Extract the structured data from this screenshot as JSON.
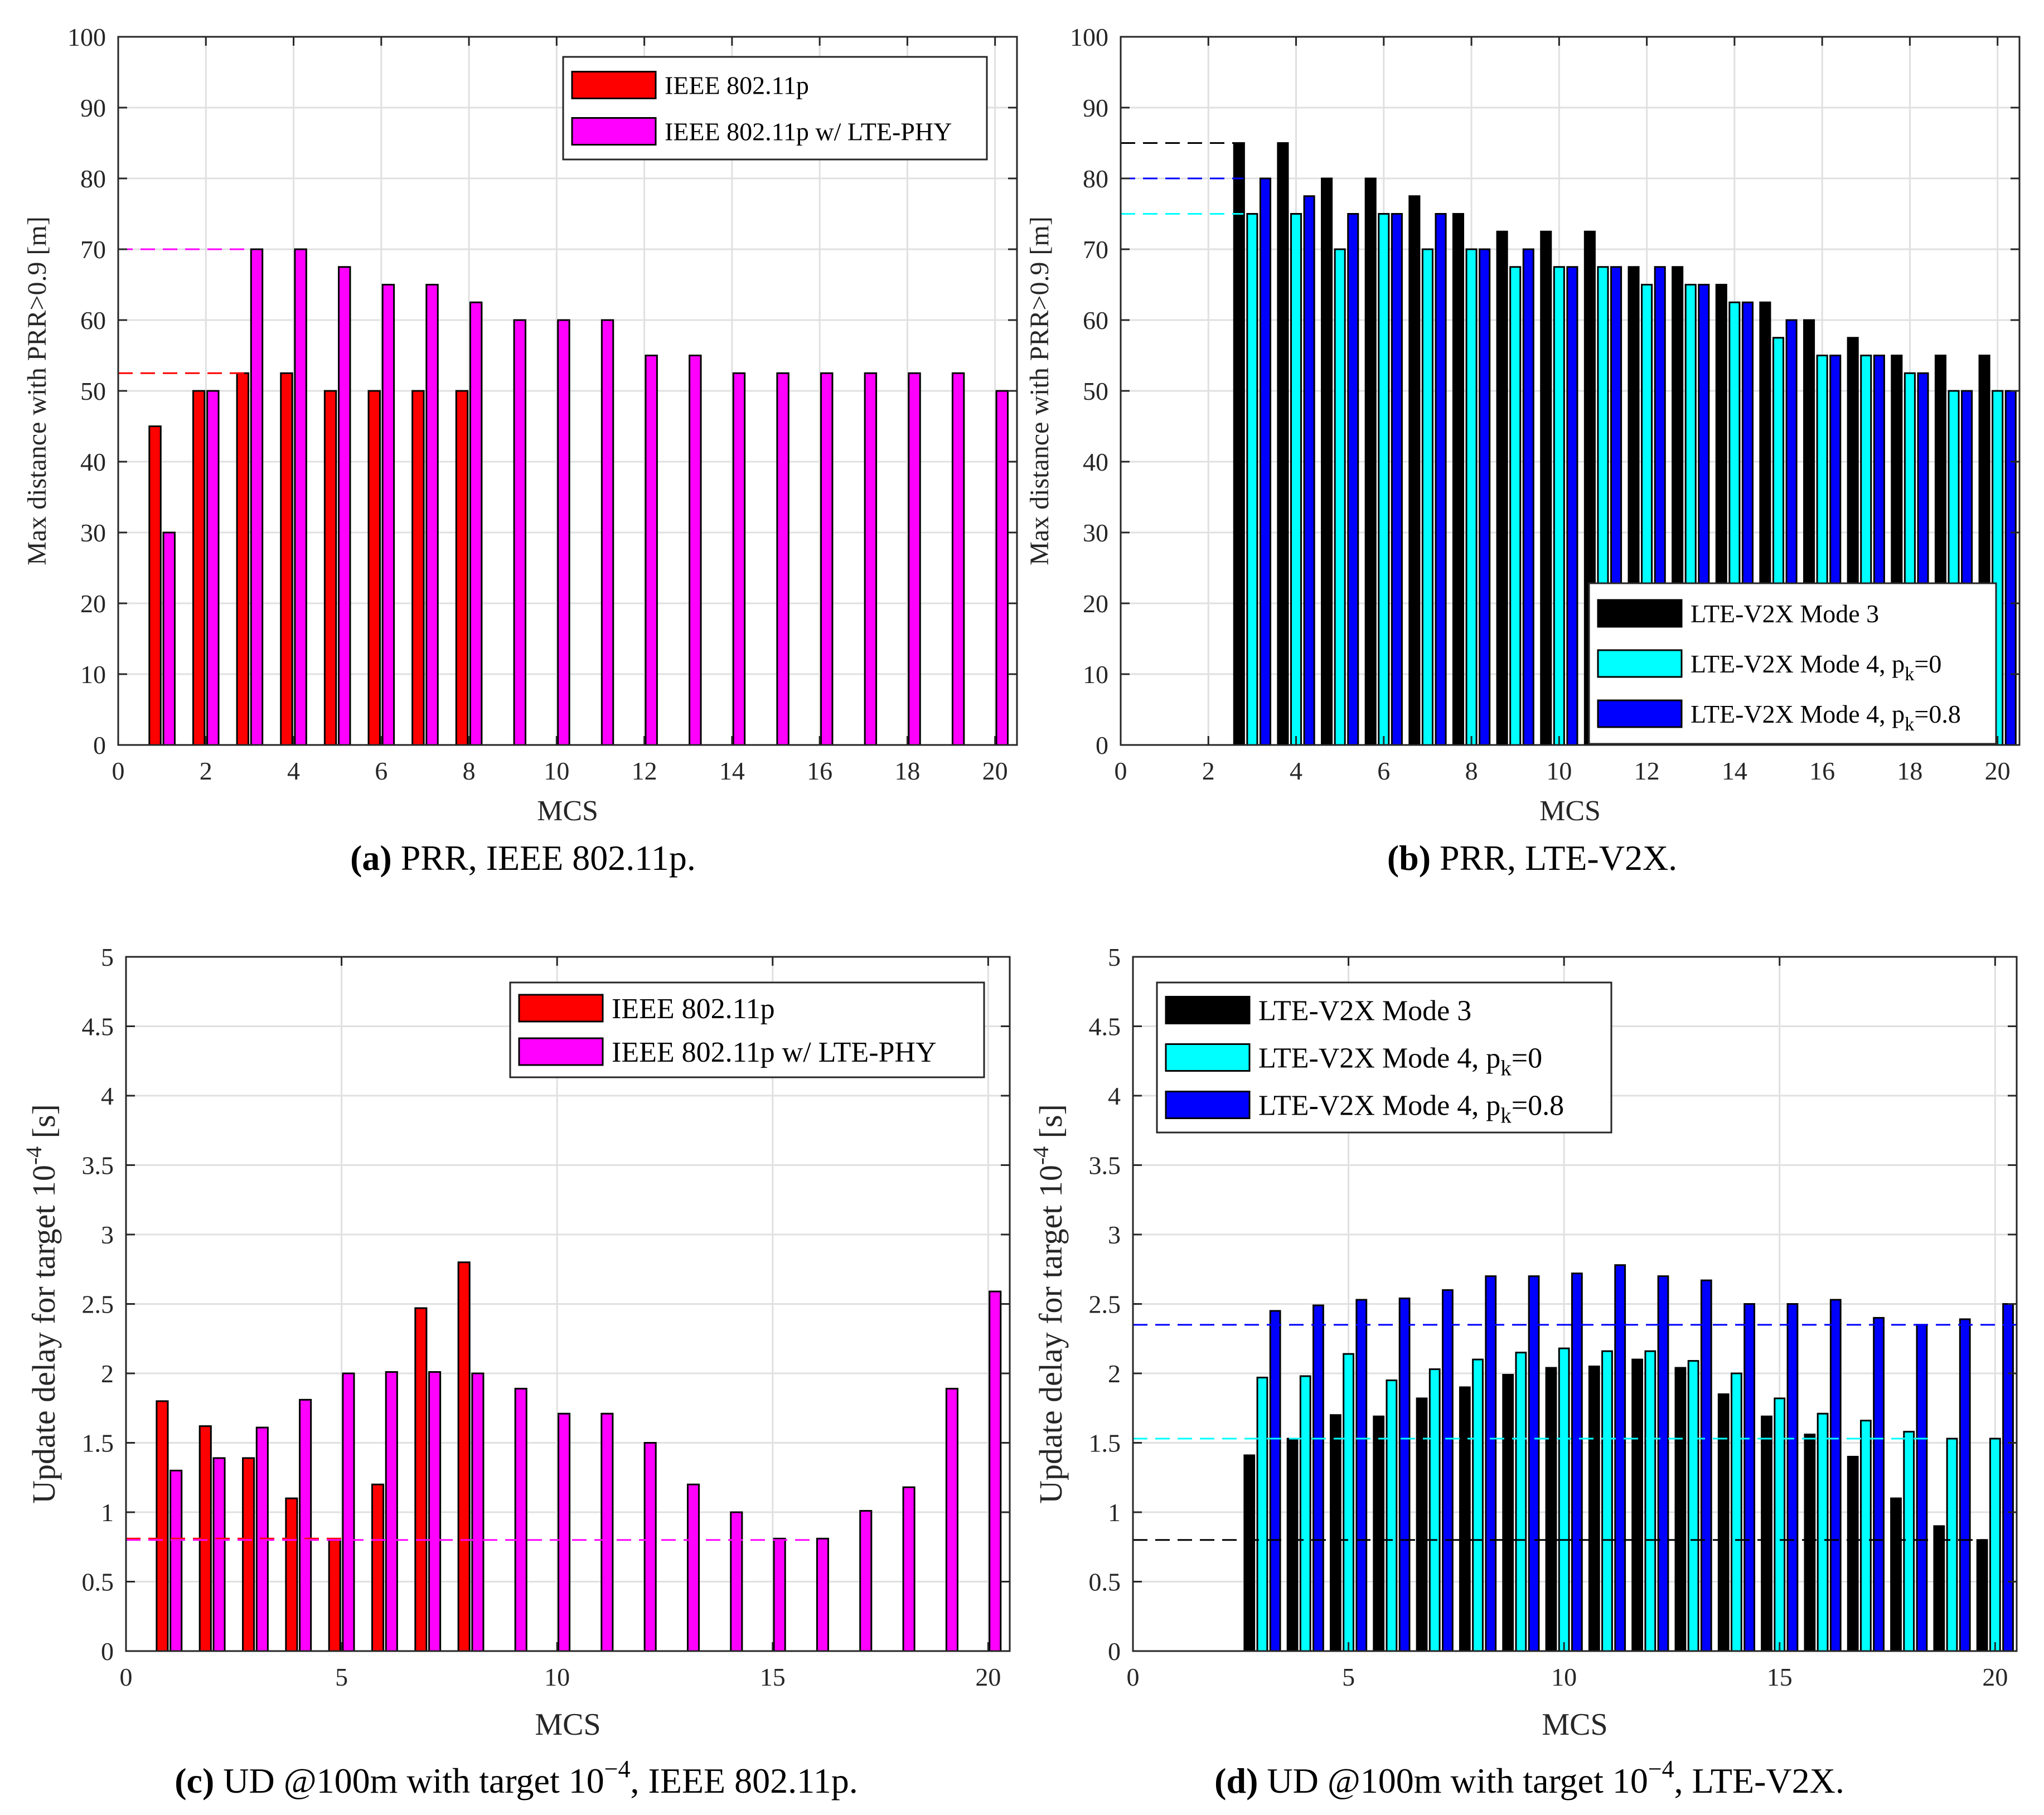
{
  "colors": {
    "ieee": "#ff0000",
    "ieee_lte": "#ff00ff",
    "mode3": "#000000",
    "mode4_0": "#00ffff",
    "mode4_08": "#0000ff",
    "grid": "#e0e0e0"
  },
  "chart_data": [
    {
      "panel": "a",
      "type": "bar",
      "caption_letter": "(a)",
      "caption_text": "PRR, IEEE 802.11p.",
      "xlabel": "MCS",
      "ylabel": "Max distance with PRR>0.9 [m]",
      "xlim": [
        0,
        20.5
      ],
      "ylim": [
        0,
        100
      ],
      "xticks": [
        0,
        2,
        4,
        6,
        8,
        10,
        12,
        14,
        16,
        18,
        20
      ],
      "yticks": [
        0,
        10,
        20,
        30,
        40,
        50,
        60,
        70,
        80,
        90,
        100
      ],
      "grid": true,
      "legend_position": "top-right",
      "categories": [
        1,
        2,
        3,
        4,
        5,
        6,
        7,
        8,
        9,
        10,
        11,
        12,
        13,
        14,
        15,
        16,
        17,
        18,
        19,
        20
      ],
      "series": [
        {
          "name": "IEEE 802.11p",
          "color": "#ff0000",
          "values": [
            45,
            50,
            52.5,
            52.5,
            50,
            50,
            50,
            50,
            0,
            0,
            0,
            0,
            0,
            0,
            0,
            0,
            0,
            0,
            0,
            0
          ]
        },
        {
          "name": "IEEE 802.11p w/ LTE-PHY",
          "color": "#ff00ff",
          "values": [
            30,
            50,
            70,
            70,
            67.5,
            65,
            65,
            62.5,
            60,
            60,
            60,
            55,
            55,
            52.5,
            52.5,
            52.5,
            52.5,
            52.5,
            52.5,
            50
          ]
        }
      ],
      "reference_lines": [
        {
          "y": 70,
          "x_end": 3,
          "color": "#ff00ff"
        },
        {
          "y": 52.5,
          "x_end": 3,
          "color": "#ff0000"
        }
      ]
    },
    {
      "panel": "b",
      "type": "bar",
      "caption_letter": "(b)",
      "caption_text": "PRR, LTE-V2X.",
      "xlabel": "MCS",
      "ylabel": "Max distance with PRR>0.9 [m]",
      "xlim": [
        0,
        20.5
      ],
      "ylim": [
        0,
        100
      ],
      "xticks": [
        0,
        2,
        4,
        6,
        8,
        10,
        12,
        14,
        16,
        18,
        20
      ],
      "yticks": [
        0,
        10,
        20,
        30,
        40,
        50,
        60,
        70,
        80,
        90,
        100
      ],
      "grid": true,
      "legend_position": "bottom-right",
      "categories": [
        1,
        2,
        3,
        4,
        5,
        6,
        7,
        8,
        9,
        10,
        11,
        12,
        13,
        14,
        15,
        16,
        17,
        18,
        19,
        20
      ],
      "series": [
        {
          "name": "LTE-V2X Mode 3",
          "color": "#000000",
          "values": [
            0,
            0,
            85,
            85,
            80,
            80,
            77.5,
            75,
            72.5,
            72.5,
            72.5,
            67.5,
            67.5,
            65,
            62.5,
            60,
            57.5,
            55,
            55,
            55
          ]
        },
        {
          "name": "LTE-V2X Mode 4, p",
          "sub": "k",
          "suffix": "=0",
          "color": "#00ffff",
          "values": [
            0,
            0,
            75,
            75,
            70,
            75,
            70,
            70,
            67.5,
            67.5,
            67.5,
            65,
            65,
            62.5,
            57.5,
            55,
            55,
            52.5,
            50,
            50
          ]
        },
        {
          "name": "LTE-V2X Mode 4, p",
          "sub": "k",
          "suffix": "=0.8",
          "color": "#0000ff",
          "values": [
            0,
            0,
            80,
            77.5,
            75,
            75,
            75,
            70,
            70,
            67.5,
            67.5,
            67.5,
            65,
            62.5,
            60,
            55,
            55,
            52.5,
            50,
            50
          ]
        }
      ],
      "reference_lines": [
        {
          "y": 85,
          "x_end": 2.8,
          "color": "#000000"
        },
        {
          "y": 80,
          "x_end": 2.8,
          "color": "#0000ff"
        },
        {
          "y": 75,
          "x_end": 2.8,
          "color": "#00ffff"
        }
      ]
    },
    {
      "panel": "c",
      "type": "bar",
      "caption_letter": "(c)",
      "caption_text": "UD @100m with target 10",
      "caption_sup": "−4",
      "caption_tail": ", IEEE 802.11p.",
      "xlabel": "MCS",
      "ylabel": "Update delay for target 10",
      "ylabel_sup": "-4",
      "ylabel_tail": " [s]",
      "xlim": [
        0,
        20.5
      ],
      "ylim": [
        0,
        5
      ],
      "xticks": [
        0,
        5,
        10,
        15,
        20
      ],
      "yticks": [
        0,
        0.5,
        1,
        1.5,
        2,
        2.5,
        3,
        3.5,
        4,
        4.5,
        5
      ],
      "grid": true,
      "legend_position": "top-right",
      "categories": [
        1,
        2,
        3,
        4,
        5,
        6,
        7,
        8,
        9,
        10,
        11,
        12,
        13,
        14,
        15,
        16,
        17,
        18,
        19,
        20
      ],
      "series": [
        {
          "name": "IEEE 802.11p",
          "color": "#ff0000",
          "values": [
            1.8,
            1.62,
            1.39,
            1.1,
            0.8,
            1.2,
            2.47,
            2.8,
            0,
            0,
            0,
            0,
            0,
            0,
            0,
            0,
            0,
            0,
            0,
            0
          ]
        },
        {
          "name": "IEEE 802.11p w/ LTE-PHY",
          "color": "#ff00ff",
          "values": [
            1.3,
            1.39,
            1.61,
            1.81,
            2.0,
            2.01,
            2.01,
            2.0,
            1.89,
            1.71,
            1.71,
            1.5,
            1.2,
            1.0,
            0.81,
            0.81,
            1.01,
            1.18,
            1.89,
            2.59
          ]
        }
      ],
      "reference_lines": [
        {
          "y": 0.81,
          "x_end": 5,
          "color": "#ff0000"
        },
        {
          "y": 0.8,
          "x_end": 16,
          "color": "#ff00ff"
        }
      ]
    },
    {
      "panel": "d",
      "type": "bar",
      "caption_letter": "(d)",
      "caption_text": "UD @100m with target 10",
      "caption_sup": "−4",
      "caption_tail": ", LTE-V2X.",
      "xlabel": "MCS",
      "ylabel": "Update delay for target 10",
      "ylabel_sup": "-4",
      "ylabel_tail": " [s]",
      "xlim": [
        0,
        20.5
      ],
      "ylim": [
        0,
        5
      ],
      "xticks": [
        0,
        5,
        10,
        15,
        20
      ],
      "yticks": [
        0,
        0.5,
        1,
        1.5,
        2,
        2.5,
        3,
        3.5,
        4,
        4.5,
        5
      ],
      "grid": true,
      "legend_position": "top-left",
      "categories": [
        1,
        2,
        3,
        4,
        5,
        6,
        7,
        8,
        9,
        10,
        11,
        12,
        13,
        14,
        15,
        16,
        17,
        18,
        19,
        20
      ],
      "series": [
        {
          "name": "LTE-V2X Mode 3",
          "color": "#000000",
          "values": [
            0,
            0,
            1.41,
            1.53,
            1.7,
            1.69,
            1.82,
            1.9,
            1.99,
            2.04,
            2.05,
            2.1,
            2.04,
            1.85,
            1.69,
            1.56,
            1.4,
            1.1,
            0.9,
            0.8
          ]
        },
        {
          "name": "LTE-V2X Mode 4, p",
          "sub": "k",
          "suffix": "=0",
          "color": "#00ffff",
          "values": [
            0,
            0,
            1.97,
            1.98,
            2.14,
            1.95,
            2.03,
            2.1,
            2.15,
            2.18,
            2.16,
            2.16,
            2.09,
            2.0,
            1.82,
            1.71,
            1.66,
            1.58,
            1.53,
            1.53
          ]
        },
        {
          "name": "LTE-V2X Mode 4, p",
          "sub": "k",
          "suffix": "=0.8",
          "color": "#0000ff",
          "values": [
            0,
            0,
            2.45,
            2.49,
            2.53,
            2.54,
            2.6,
            2.7,
            2.7,
            2.72,
            2.78,
            2.7,
            2.67,
            2.5,
            2.5,
            2.53,
            2.4,
            2.35,
            2.39,
            2.5
          ]
        }
      ],
      "reference_lines": [
        {
          "y": 2.35,
          "x_end": 20.5,
          "color": "#0000ff"
        },
        {
          "y": 1.53,
          "x_end": 18.5,
          "color": "#00ffff"
        },
        {
          "y": 0.8,
          "x_end": 19.8,
          "color": "#000000"
        }
      ]
    }
  ]
}
